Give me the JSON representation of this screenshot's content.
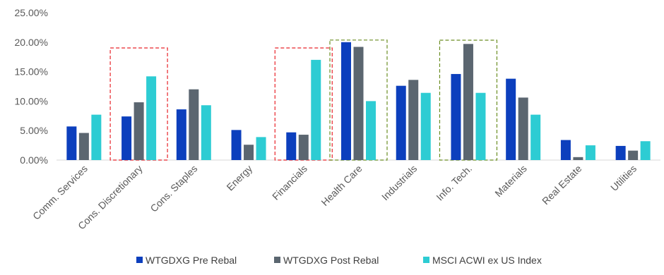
{
  "chart_data": {
    "type": "bar",
    "categories": [
      "Comm. Services",
      "Cons. Discretionary",
      "Cons. Staples",
      "Energy",
      "Financials",
      "Health Care",
      "Industrials",
      "Info. Tech.",
      "Materials",
      "Real Estate",
      "Utilities"
    ],
    "series": [
      {
        "name": "WTGDXG Pre Rebal",
        "color": "#0c3fbd",
        "values": [
          5.7,
          7.4,
          8.6,
          5.1,
          4.7,
          20.0,
          12.6,
          14.6,
          13.8,
          3.4,
          2.4
        ]
      },
      {
        "name": "WTGDXG Post Rebal",
        "color": "#5b6670",
        "values": [
          4.6,
          9.8,
          12.0,
          2.6,
          4.3,
          19.2,
          13.6,
          19.7,
          10.6,
          0.5,
          1.6
        ]
      },
      {
        "name": "MSCI ACWI ex US Index",
        "color": "#2dccd3",
        "values": [
          7.7,
          14.2,
          9.3,
          3.9,
          17.0,
          10.0,
          11.4,
          11.4,
          7.7,
          2.5,
          3.2
        ]
      }
    ],
    "ylim": [
      0,
      25
    ],
    "yticks": [
      0,
      5,
      10,
      15,
      20,
      25
    ],
    "ytick_labels": [
      "0.00%",
      "5.00%",
      "10.00%",
      "15.00%",
      "20.00%",
      "25.00%"
    ],
    "highlight_boxes": [
      {
        "category_index": 1,
        "color": "#e8242a",
        "style": "dashed"
      },
      {
        "category_index": 4,
        "color": "#e8242a",
        "style": "dashed"
      },
      {
        "category_index": 5,
        "color": "#6b8e23",
        "style": "dashed"
      },
      {
        "category_index": 7,
        "color": "#6b8e23",
        "style": "dashed"
      }
    ],
    "legend_position": "bottom-center",
    "grid": false
  }
}
